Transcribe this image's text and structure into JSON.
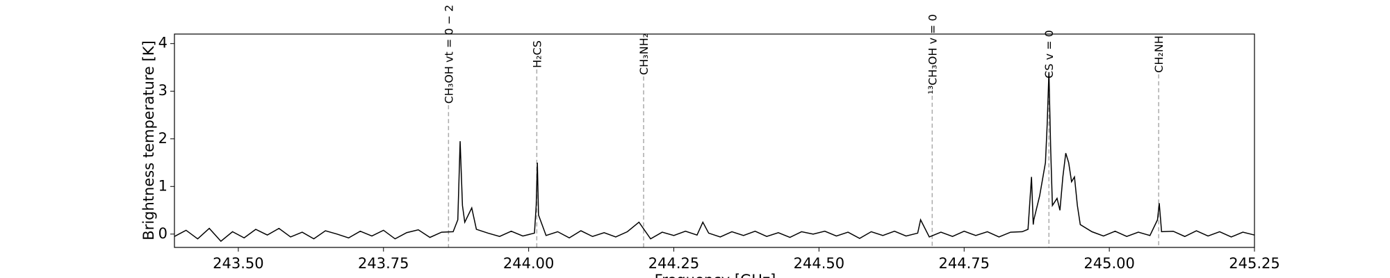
{
  "chart_data": {
    "type": "line",
    "x_label": "Frequency [GHz]",
    "y_label": "Brightness temperature [K]",
    "xlim": [
      243.39,
      245.25
    ],
    "ylim": [
      -0.28,
      4.2
    ],
    "xticks": [
      {
        "value": 243.5,
        "label": "243.50"
      },
      {
        "value": 243.75,
        "label": "243.75"
      },
      {
        "value": 244.0,
        "label": "244.00"
      },
      {
        "value": 244.25,
        "label": "244.25"
      },
      {
        "value": 244.5,
        "label": "244.50"
      },
      {
        "value": 244.75,
        "label": "244.75"
      },
      {
        "value": 245.0,
        "label": "245.00"
      },
      {
        "value": 245.25,
        "label": "245.25"
      }
    ],
    "yticks": [
      0,
      1,
      2,
      3,
      4
    ],
    "color": "#000000",
    "line_markers": [
      {
        "label": "CH₃OH vt = 0 − 2",
        "x": 243.862
      },
      {
        "label": "H₂CS",
        "x": 244.014
      },
      {
        "label": "CH₃NH₂",
        "x": 244.198
      },
      {
        "label": "¹³CH₃OH v = 0",
        "x": 244.695
      },
      {
        "label": "CS v = 0",
        "x": 244.896
      },
      {
        "label": "CH₂NH",
        "x": 245.085
      }
    ],
    "x": [
      243.39,
      243.41,
      243.43,
      243.45,
      243.47,
      243.49,
      243.51,
      243.53,
      243.55,
      243.57,
      243.59,
      243.61,
      243.63,
      243.65,
      243.67,
      243.69,
      243.71,
      243.73,
      243.75,
      243.77,
      243.79,
      243.81,
      243.83,
      243.85,
      243.87,
      243.878,
      243.882,
      243.886,
      243.89,
      243.902,
      243.91,
      243.93,
      243.95,
      243.97,
      243.99,
      244.01,
      244.013,
      244.015,
      244.017,
      244.03,
      244.05,
      244.07,
      244.09,
      244.11,
      244.13,
      244.15,
      244.17,
      244.19,
      244.21,
      244.23,
      244.25,
      244.27,
      244.29,
      244.3,
      244.31,
      244.33,
      244.35,
      244.37,
      244.39,
      244.41,
      244.43,
      244.45,
      244.47,
      244.49,
      244.51,
      244.53,
      244.55,
      244.57,
      244.59,
      244.61,
      244.63,
      244.65,
      244.67,
      244.675,
      244.69,
      244.71,
      244.73,
      244.75,
      244.77,
      244.79,
      244.81,
      244.83,
      244.85,
      244.86,
      244.866,
      244.869,
      244.87,
      244.88,
      244.89,
      244.893,
      244.896,
      244.899,
      244.902,
      244.91,
      244.915,
      244.92,
      244.925,
      244.93,
      244.935,
      244.94,
      244.945,
      244.95,
      244.97,
      244.99,
      245.01,
      245.03,
      245.05,
      245.07,
      245.083,
      245.086,
      245.089,
      245.09,
      245.11,
      245.13,
      245.15,
      245.17,
      245.19,
      245.21,
      245.23,
      245.25
    ],
    "values": [
      -0.05,
      0.08,
      -0.1,
      0.12,
      -0.15,
      0.05,
      -0.08,
      0.1,
      -0.02,
      0.12,
      -0.06,
      0.04,
      -0.1,
      0.07,
      0.0,
      -0.08,
      0.06,
      -0.04,
      0.08,
      -0.1,
      0.03,
      0.09,
      -0.07,
      0.04,
      0.05,
      0.3,
      1.95,
      0.6,
      0.25,
      0.55,
      0.1,
      0.02,
      -0.05,
      0.06,
      -0.04,
      0.02,
      0.6,
      1.5,
      0.4,
      -0.03,
      0.05,
      -0.08,
      0.07,
      -0.05,
      0.03,
      -0.06,
      0.05,
      0.25,
      -0.1,
      0.04,
      -0.03,
      0.06,
      -0.02,
      0.25,
      0.02,
      -0.06,
      0.05,
      -0.03,
      0.06,
      -0.05,
      0.03,
      -0.07,
      0.05,
      0.0,
      0.06,
      -0.04,
      0.04,
      -0.09,
      0.05,
      -0.03,
      0.06,
      -0.04,
      0.02,
      0.3,
      -0.06,
      0.04,
      -0.05,
      0.06,
      -0.03,
      0.05,
      -0.06,
      0.04,
      0.05,
      0.1,
      1.2,
      0.2,
      0.3,
      0.8,
      1.5,
      2.3,
      3.4,
      1.8,
      0.6,
      0.75,
      0.5,
      1.2,
      1.7,
      1.5,
      1.1,
      1.2,
      0.6,
      0.2,
      0.05,
      -0.04,
      0.06,
      -0.05,
      0.04,
      -0.03,
      0.3,
      0.65,
      0.2,
      0.05,
      0.06,
      -0.05,
      0.07,
      -0.04,
      0.05,
      -0.06,
      0.04,
      -0.02
    ]
  }
}
